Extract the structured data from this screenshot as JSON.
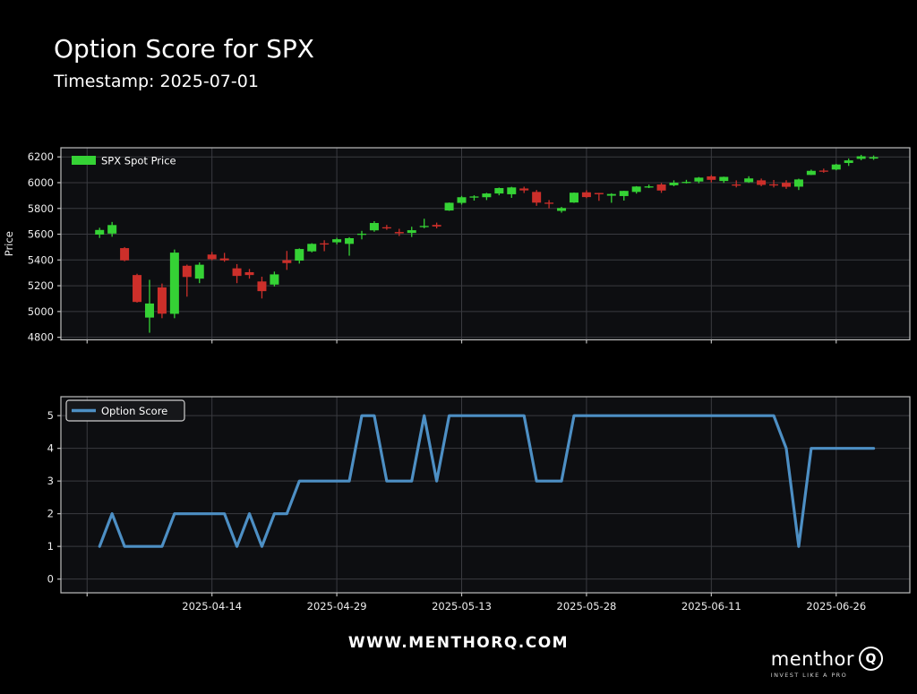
{
  "header": {
    "title": "Option Score for SPX",
    "subtitle": "Timestamp: 2025-07-01"
  },
  "footer": {
    "website": "WWW.MENTHORQ.COM",
    "logo_text": "menthor",
    "logo_q": "Q",
    "tagline": "INVEST LIKE A PRO"
  },
  "colors": {
    "up": "#35d235",
    "down": "#cc2f2a",
    "score_line": "#4d8fc4",
    "grid": "#3a3b40",
    "spine": "#bdbdbd",
    "plot_bg": "#0d0e11",
    "page_bg": "#000000",
    "text": "#ededed",
    "legend_box_fill": "#16171a",
    "legend_box_stroke": "#cfcfcf"
  },
  "chart_data": [
    {
      "type": "candlestick",
      "name": "spx-spot-price",
      "legend": "SPX Spot Price",
      "ylabel": "Price",
      "grid": true,
      "legend_position": "upper-left",
      "ylim": [
        4780,
        6271
      ],
      "yticks": [
        4800,
        5000,
        5200,
        5400,
        5600,
        5800,
        6000,
        6200
      ],
      "xlim_idx": [
        -2.1,
        65.9
      ],
      "x_tick_idx": [
        0,
        10,
        20,
        30,
        40,
        50,
        60
      ],
      "x_tick_labels": [
        "",
        "",
        "",
        "",
        "",
        "",
        ""
      ],
      "dates": [
        "2025-04-01",
        "2025-04-02",
        "2025-04-03",
        "2025-04-04",
        "2025-04-07",
        "2025-04-08",
        "2025-04-09",
        "2025-04-10",
        "2025-04-11",
        "2025-04-14",
        "2025-04-15",
        "2025-04-16",
        "2025-04-17",
        "2025-04-21",
        "2025-04-22",
        "2025-04-23",
        "2025-04-24",
        "2025-04-25",
        "2025-04-28",
        "2025-04-29",
        "2025-04-30",
        "2025-05-01",
        "2025-05-02",
        "2025-05-05",
        "2025-05-06",
        "2025-05-07",
        "2025-05-08",
        "2025-05-09",
        "2025-05-12",
        "2025-05-13",
        "2025-05-14",
        "2025-05-15",
        "2025-05-16",
        "2025-05-19",
        "2025-05-20",
        "2025-05-21",
        "2025-05-22",
        "2025-05-23",
        "2025-05-27",
        "2025-05-28",
        "2025-05-29",
        "2025-05-30",
        "2025-06-02",
        "2025-06-03",
        "2025-06-04",
        "2025-06-05",
        "2025-06-06",
        "2025-06-09",
        "2025-06-10",
        "2025-06-11",
        "2025-06-12",
        "2025-06-13",
        "2025-06-16",
        "2025-06-17",
        "2025-06-18",
        "2025-06-20",
        "2025-06-23",
        "2025-06-24",
        "2025-06-25",
        "2025-06-26",
        "2025-06-27",
        "2025-06-30",
        "2025-07-01"
      ],
      "ohlc": [
        [
          5597,
          5650,
          5571,
          5633
        ],
        [
          5605,
          5695,
          5580,
          5671
        ],
        [
          5492,
          5500,
          5390,
          5397
        ],
        [
          5283,
          5293,
          5069,
          5074
        ],
        [
          4953,
          5246,
          4835,
          5062
        ],
        [
          5187,
          5217,
          4948,
          4983
        ],
        [
          4982,
          5481,
          4948,
          5457
        ],
        [
          5355,
          5364,
          5115,
          5268
        ],
        [
          5255,
          5381,
          5220,
          5363
        ],
        [
          5442,
          5462,
          5398,
          5406
        ],
        [
          5412,
          5455,
          5386,
          5397
        ],
        [
          5335,
          5368,
          5220,
          5276
        ],
        [
          5305,
          5330,
          5255,
          5283
        ],
        [
          5233,
          5270,
          5101,
          5158
        ],
        [
          5209,
          5310,
          5194,
          5288
        ],
        [
          5398,
          5470,
          5323,
          5376
        ],
        [
          5395,
          5490,
          5372,
          5485
        ],
        [
          5467,
          5530,
          5459,
          5525
        ],
        [
          5529,
          5553,
          5468,
          5528
        ],
        [
          5537,
          5572,
          5521,
          5561
        ],
        [
          5525,
          5577,
          5433,
          5569
        ],
        [
          5597,
          5626,
          5560,
          5604
        ],
        [
          5630,
          5701,
          5619,
          5687
        ],
        [
          5654,
          5672,
          5634,
          5650
        ],
        [
          5617,
          5642,
          5586,
          5607
        ],
        [
          5610,
          5658,
          5578,
          5631
        ],
        [
          5663,
          5720,
          5646,
          5664
        ],
        [
          5672,
          5690,
          5645,
          5660
        ],
        [
          5784,
          5846,
          5781,
          5844
        ],
        [
          5843,
          5897,
          5830,
          5887
        ],
        [
          5891,
          5902,
          5861,
          5893
        ],
        [
          5887,
          5921,
          5865,
          5916
        ],
        [
          5916,
          5962,
          5902,
          5958
        ],
        [
          5910,
          5968,
          5882,
          5963
        ],
        [
          5955,
          5969,
          5920,
          5940
        ],
        [
          5928,
          5943,
          5820,
          5845
        ],
        [
          5845,
          5865,
          5801,
          5838
        ],
        [
          5781,
          5812,
          5767,
          5803
        ],
        [
          5846,
          5924,
          5843,
          5922
        ],
        [
          5925,
          5941,
          5880,
          5888
        ],
        [
          5920,
          5921,
          5859,
          5910
        ],
        [
          5899,
          5918,
          5844,
          5912
        ],
        [
          5896,
          5937,
          5861,
          5936
        ],
        [
          5928,
          5973,
          5915,
          5970
        ],
        [
          5966,
          5985,
          5958,
          5971
        ],
        [
          5986,
          5997,
          5921,
          5939
        ],
        [
          5980,
          6018,
          5972,
          6000
        ],
        [
          6004,
          6022,
          5994,
          6006
        ],
        [
          6009,
          6044,
          5995,
          6039
        ],
        [
          6049,
          6059,
          6002,
          6022
        ],
        [
          6013,
          6047,
          5998,
          6045
        ],
        [
          5986,
          6018,
          5963,
          5977
        ],
        [
          6004,
          6050,
          5998,
          6033
        ],
        [
          6018,
          6032,
          5972,
          5983
        ],
        [
          5987,
          6021,
          5963,
          5981
        ],
        [
          5999,
          6019,
          5952,
          5968
        ],
        [
          5969,
          6031,
          5943,
          6025
        ],
        [
          6060,
          6101,
          6059,
          6092
        ],
        [
          6094,
          6109,
          6077,
          6092
        ],
        [
          6102,
          6146,
          6096,
          6141
        ],
        [
          6153,
          6188,
          6130,
          6173
        ],
        [
          6185,
          6216,
          6174,
          6205
        ],
        [
          6187,
          6211,
          6177,
          6198
        ]
      ]
    },
    {
      "type": "line",
      "name": "option-score",
      "legend": "Option Score",
      "ylabel": "",
      "grid": true,
      "legend_position": "upper-left",
      "ylim": [
        -0.42,
        5.58
      ],
      "yticks": [
        0,
        1,
        2,
        3,
        4,
        5
      ],
      "xlim_idx": [
        -2.1,
        65.9
      ],
      "x_tick_idx": [
        0,
        10,
        20,
        30,
        40,
        50,
        60
      ],
      "x_tick_labels": [
        "",
        "2025-04-14",
        "2025-04-29",
        "2025-05-13",
        "2025-05-28",
        "2025-06-11",
        "2025-06-26"
      ],
      "dates": [
        "2025-04-01",
        "2025-04-02",
        "2025-04-03",
        "2025-04-04",
        "2025-04-07",
        "2025-04-08",
        "2025-04-09",
        "2025-04-10",
        "2025-04-11",
        "2025-04-14",
        "2025-04-15",
        "2025-04-16",
        "2025-04-17",
        "2025-04-21",
        "2025-04-22",
        "2025-04-23",
        "2025-04-24",
        "2025-04-25",
        "2025-04-28",
        "2025-04-29",
        "2025-04-30",
        "2025-05-01",
        "2025-05-02",
        "2025-05-05",
        "2025-05-06",
        "2025-05-07",
        "2025-05-08",
        "2025-05-09",
        "2025-05-12",
        "2025-05-13",
        "2025-05-14",
        "2025-05-15",
        "2025-05-16",
        "2025-05-19",
        "2025-05-20",
        "2025-05-21",
        "2025-05-22",
        "2025-05-23",
        "2025-05-27",
        "2025-05-28",
        "2025-05-29",
        "2025-05-30",
        "2025-06-02",
        "2025-06-03",
        "2025-06-04",
        "2025-06-05",
        "2025-06-06",
        "2025-06-09",
        "2025-06-10",
        "2025-06-11",
        "2025-06-12",
        "2025-06-13",
        "2025-06-16",
        "2025-06-17",
        "2025-06-18",
        "2025-06-20",
        "2025-06-23",
        "2025-06-24",
        "2025-06-25",
        "2025-06-26",
        "2025-06-27",
        "2025-06-30",
        "2025-07-01"
      ],
      "values": [
        1,
        2,
        1,
        1,
        1,
        1,
        2,
        2,
        2,
        2,
        2,
        1,
        2,
        1,
        2,
        2,
        3,
        3,
        3,
        3,
        3,
        5,
        5,
        3,
        3,
        3,
        5,
        3,
        5,
        5,
        5,
        5,
        5,
        5,
        5,
        3,
        3,
        3,
        5,
        5,
        5,
        5,
        5,
        5,
        5,
        5,
        5,
        5,
        5,
        5,
        5,
        5,
        5,
        5,
        5,
        4,
        1,
        4,
        4,
        4,
        4,
        4,
        4
      ]
    }
  ]
}
